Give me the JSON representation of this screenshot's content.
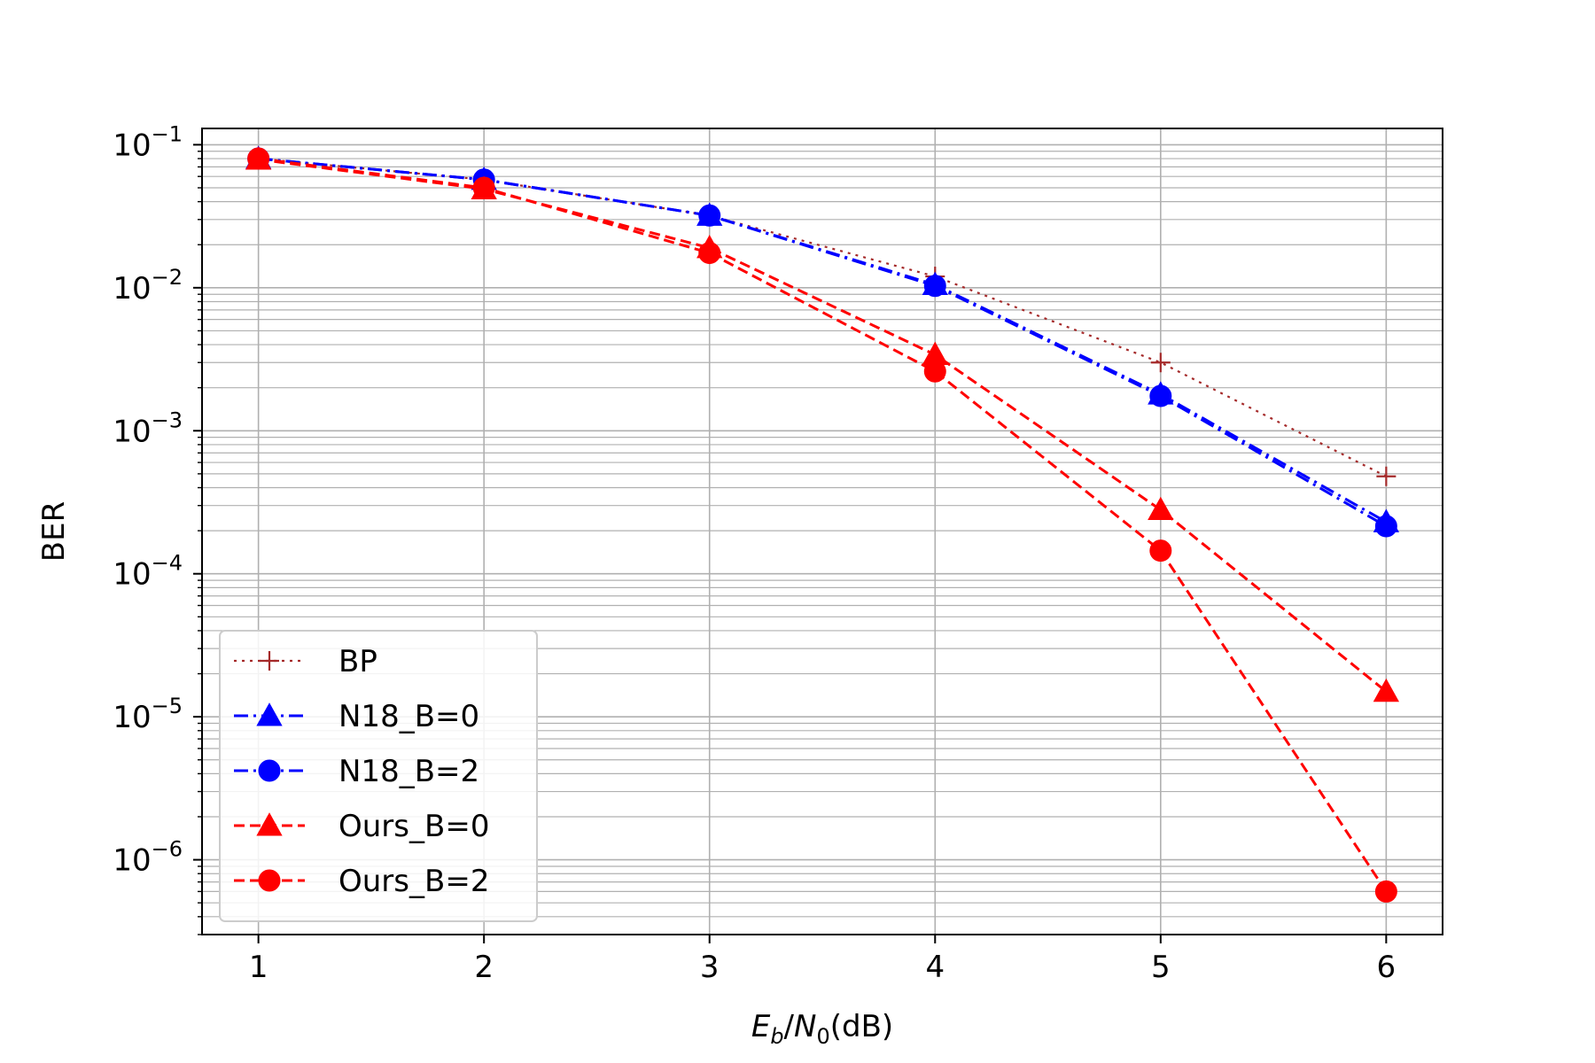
{
  "chart_data": {
    "type": "line",
    "title": "",
    "xlabel": "E_b/N_0(dB)",
    "xlabel_parts": {
      "E": "E",
      "b": "b",
      "slash": "/",
      "N": "N",
      "zero": "0",
      "unit": "(dB)"
    },
    "ylabel": "BER",
    "y_scale": "log",
    "xlim": [
      0.75,
      6.25
    ],
    "ylim": [
      3e-07,
      0.13
    ],
    "x_ticks": [
      1,
      2,
      3,
      4,
      5,
      6
    ],
    "x_tick_labels": [
      "1",
      "2",
      "3",
      "4",
      "5",
      "6"
    ],
    "y_ticks": [
      0.1,
      0.01,
      0.001,
      0.0001,
      1e-05,
      1e-06
    ],
    "y_tick_labels": [
      {
        "base": "10",
        "exp": "−1"
      },
      {
        "base": "10",
        "exp": "−2"
      },
      {
        "base": "10",
        "exp": "−3"
      },
      {
        "base": "10",
        "exp": "−4"
      },
      {
        "base": "10",
        "exp": "−5"
      },
      {
        "base": "10",
        "exp": "−6"
      }
    ],
    "grid": true,
    "legend_position": "lower-left",
    "x": [
      1,
      2,
      3,
      4,
      5,
      6
    ],
    "series": [
      {
        "name": "BP",
        "values": [
          0.08,
          0.057,
          0.032,
          0.012,
          0.003,
          0.00048
        ],
        "color": "#a52a2a",
        "dash": "dotted",
        "marker": "plus"
      },
      {
        "name": "N18_B=0",
        "values": [
          0.08,
          0.057,
          0.032,
          0.0105,
          0.0018,
          0.00023
        ],
        "color": "#0000ff",
        "dash": "dashdot",
        "marker": "triangle"
      },
      {
        "name": "N18_B=2",
        "values": [
          0.08,
          0.057,
          0.032,
          0.0103,
          0.00175,
          0.000215
        ],
        "color": "#0000ff",
        "dash": "dashdot",
        "marker": "circle"
      },
      {
        "name": "Ours_B=0",
        "values": [
          0.079,
          0.049,
          0.019,
          0.0034,
          0.00028,
          1.5e-05
        ],
        "color": "#ff0000",
        "dash": "dashed",
        "marker": "triangle"
      },
      {
        "name": "Ours_B=2",
        "values": [
          0.08,
          0.05,
          0.0175,
          0.0026,
          0.000145,
          6e-07
        ],
        "color": "#ff0000",
        "dash": "dashed",
        "marker": "circle"
      }
    ]
  }
}
